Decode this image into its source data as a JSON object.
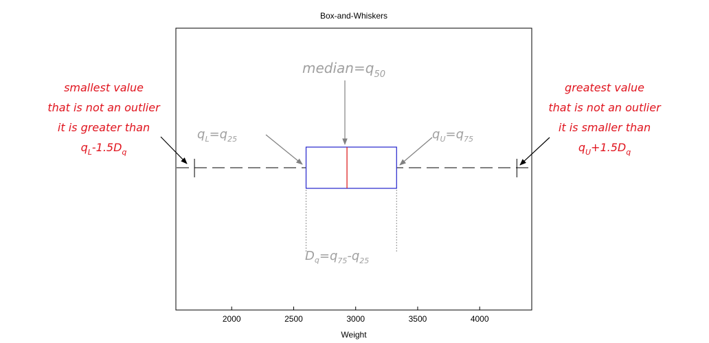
{
  "chart_data": {
    "type": "box",
    "title": "Box-and-Whiskers",
    "xlabel": "Weight",
    "ylabel": "",
    "xlim": [
      1550,
      4420
    ],
    "xticks": [
      2000,
      2500,
      3000,
      3500,
      4000
    ],
    "tick_labels": [
      "2000",
      "2500",
      "3000",
      "3500",
      "4000"
    ],
    "box": {
      "whisker_low": 1700,
      "q25": 2600,
      "median": 2930,
      "q75": 3330,
      "whisker_high": 4300
    },
    "colors": {
      "box": "#2222cc",
      "median": "#dd2222",
      "whisker": "#000000",
      "annotation_gray": "#a0a0a0",
      "annotation_red": "#e0141e"
    },
    "annotations": {
      "median": {
        "main": "median=q",
        "sub": "50"
      },
      "qL": {
        "t1": "q",
        "s1": "L",
        "t2": "=q",
        "s2": "25"
      },
      "qU": {
        "t1": "q",
        "s1": "U",
        "t2": "=q",
        "s2": "75"
      },
      "dq": {
        "t1": "D",
        "s1": "q",
        "t2": "=q",
        "s2": "75",
        "t3": "-q",
        "s3": "25"
      },
      "left": {
        "line1": "smallest value",
        "line2": "that is not an outlier",
        "line3": "it is greater than",
        "l4a": "q",
        "l4s": "L",
        "l4b": "-1.5D",
        "l4s2": "q"
      },
      "right": {
        "line1": "greatest value",
        "line2": "that is not an outlier",
        "line3": "it is smaller than",
        "l4a": "q",
        "l4s": "U",
        "l4b": "+1.5D",
        "l4s2": "q"
      }
    }
  }
}
